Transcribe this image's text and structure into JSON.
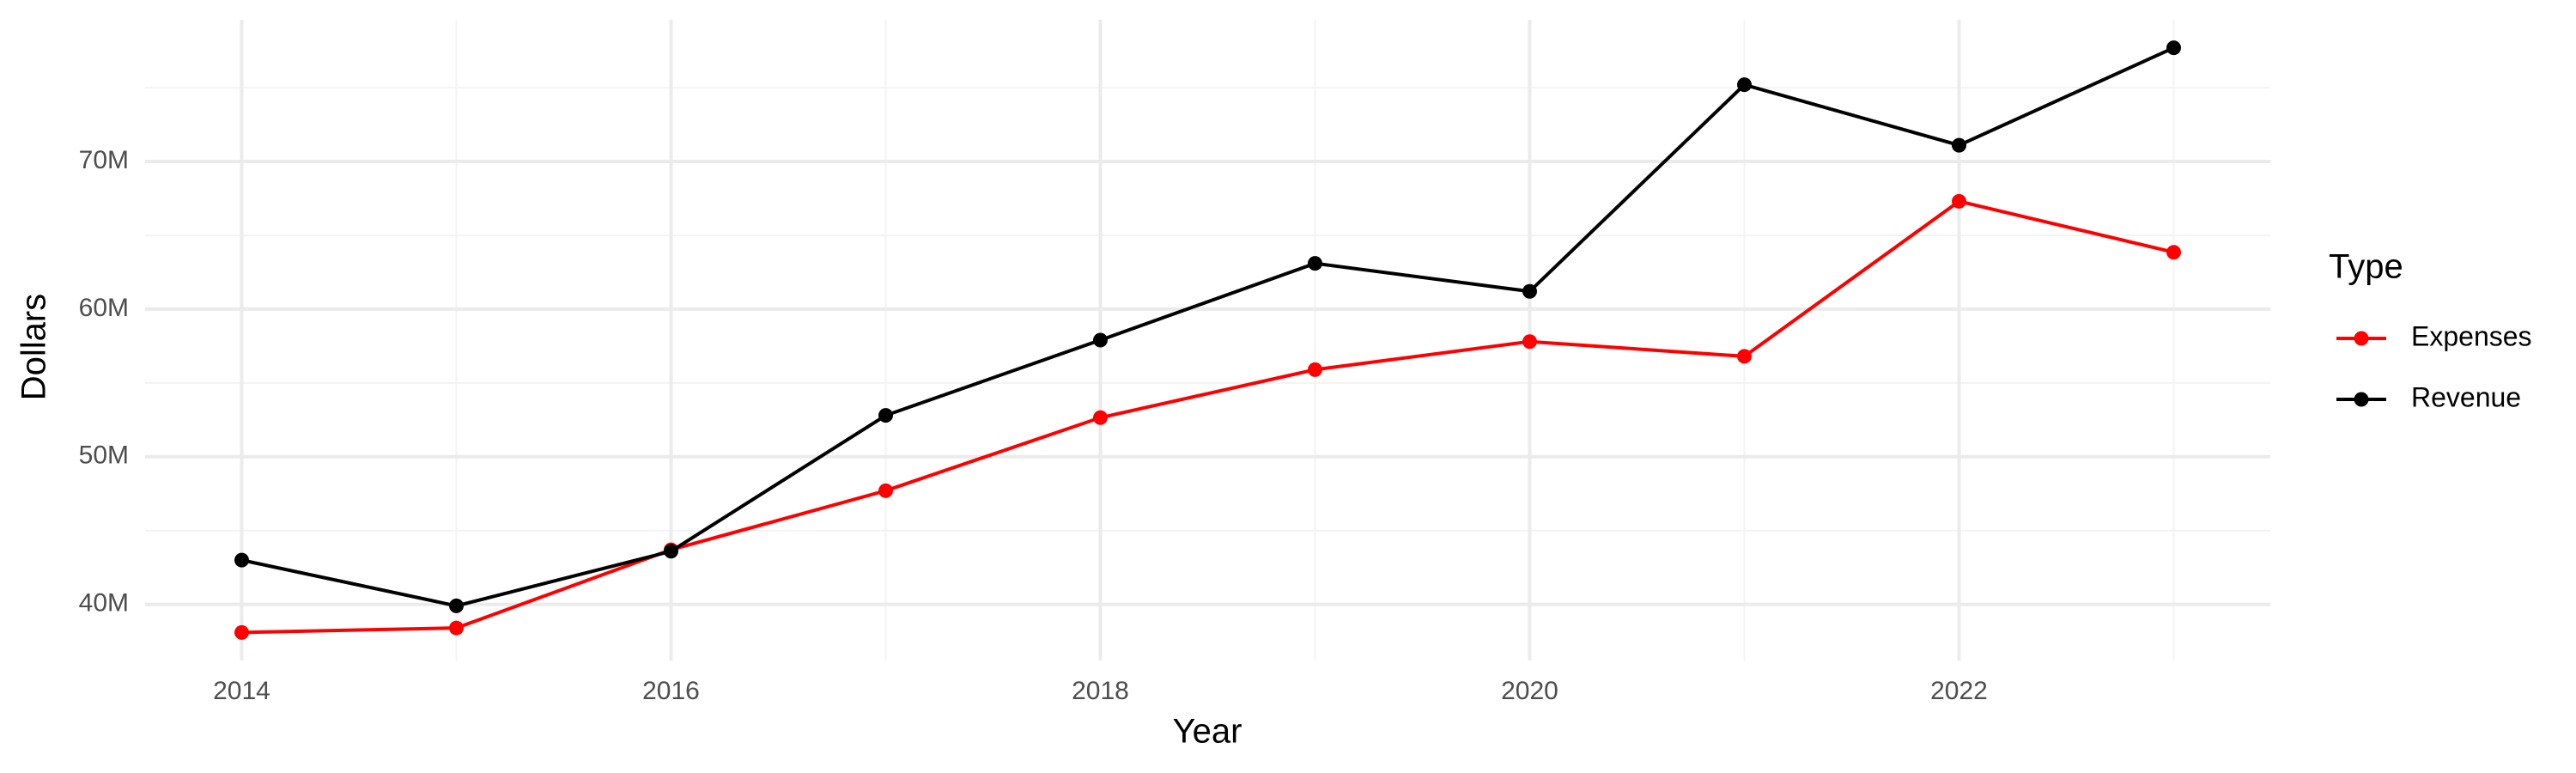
{
  "chart_data": {
    "type": "line",
    "x_label": "Year",
    "y_label": "Dollars",
    "legend_title": "Type",
    "legend_position": "right",
    "x": [
      2014,
      2015,
      2016,
      2017,
      2018,
      2019,
      2020,
      2021,
      2022,
      2023
    ],
    "series": [
      {
        "name": "Expenses",
        "color": "#ff0000",
        "values": [
          38100000,
          38400000,
          43700000,
          47700000,
          52650000,
          55900000,
          57800000,
          56800000,
          67300000,
          63850000
        ]
      },
      {
        "name": "Revenue",
        "color": "#000000",
        "values": [
          43000000,
          39900000,
          43600000,
          52800000,
          57900000,
          63100000,
          61200000,
          75200000,
          71100000,
          77700000
        ]
      }
    ],
    "xlim": [
      2013.55,
      2023.45
    ],
    "xticks": [
      2014,
      2016,
      2018,
      2020,
      2022
    ],
    "ylim": [
      36200000,
      79600000
    ],
    "yticks": [
      {
        "value": 40000000,
        "label": "40M"
      },
      {
        "value": 50000000,
        "label": "50M"
      },
      {
        "value": 60000000,
        "label": "60M"
      },
      {
        "value": 70000000,
        "label": "70M"
      }
    ],
    "grid": true
  }
}
